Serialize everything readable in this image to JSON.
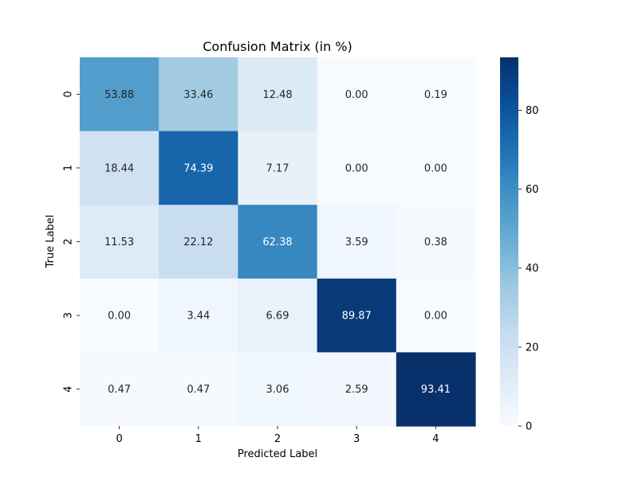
{
  "chart_data": {
    "type": "heatmap",
    "title": "Confusion Matrix (in %)",
    "xlabel": "Predicted Label",
    "ylabel": "True Label",
    "x_categories": [
      "0",
      "1",
      "2",
      "3",
      "4"
    ],
    "y_categories": [
      "0",
      "1",
      "2",
      "3",
      "4"
    ],
    "values": [
      [
        53.88,
        33.46,
        12.48,
        0.0,
        0.19
      ],
      [
        18.44,
        74.39,
        7.17,
        0.0,
        0.0
      ],
      [
        11.53,
        22.12,
        62.38,
        3.59,
        0.38
      ],
      [
        0.0,
        3.44,
        6.69,
        89.87,
        0.0
      ],
      [
        0.47,
        0.47,
        3.06,
        2.59,
        93.41
      ]
    ],
    "colormap": "Blues",
    "vmin": 0,
    "vmax": 93.41,
    "colorbar_ticks": [
      0,
      20,
      40,
      60,
      80
    ],
    "legend": "colorbar-right",
    "grid": false
  }
}
